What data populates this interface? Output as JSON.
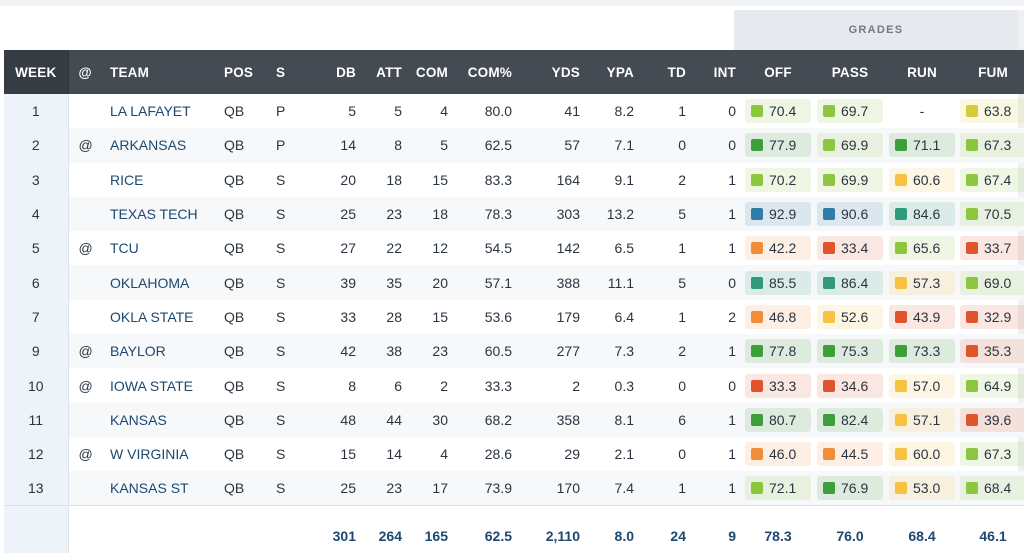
{
  "grades_label": "GRADES",
  "columns": {
    "week": "WEEK",
    "at": "@",
    "team": "TEAM",
    "pos": "POS",
    "s": "S",
    "db": "DB",
    "att": "ATT",
    "com": "COM",
    "comp": "COM%",
    "yds": "YDS",
    "ypa": "YPA",
    "td": "TD",
    "int": "INT",
    "off": "OFF",
    "pass": "PASS",
    "run": "RUN",
    "fum": "FUM"
  },
  "grade_colors": {
    "elite": "#2f7cab",
    "high": "#2f9a7a",
    "good": "#3d9e3a",
    "above": "#8cc63f",
    "average": "#d7cb3a",
    "below": "#f5c242",
    "low": "#f08c3a",
    "poor": "#e0542d"
  },
  "rows": [
    {
      "week": "1",
      "at": "",
      "team": "LA LAFAYET",
      "pos": "QB",
      "s": "P",
      "db": "5",
      "att": "5",
      "com": "4",
      "comp": "80.0",
      "yds": "41",
      "ypa": "8.2",
      "td": "1",
      "int": "0",
      "grades": [
        {
          "v": "70.4",
          "c": "above"
        },
        {
          "v": "69.7",
          "c": "above"
        },
        {
          "v": "-",
          "c": ""
        },
        {
          "v": "63.8",
          "c": "average"
        }
      ]
    },
    {
      "week": "2",
      "at": "@",
      "team": "ARKANSAS",
      "pos": "QB",
      "s": "P",
      "db": "14",
      "att": "8",
      "com": "5",
      "comp": "62.5",
      "yds": "57",
      "ypa": "7.1",
      "td": "0",
      "int": "0",
      "grades": [
        {
          "v": "77.9",
          "c": "good"
        },
        {
          "v": "69.9",
          "c": "above"
        },
        {
          "v": "71.1",
          "c": "good"
        },
        {
          "v": "67.3",
          "c": "above"
        }
      ]
    },
    {
      "week": "3",
      "at": "",
      "team": "RICE",
      "pos": "QB",
      "s": "S",
      "db": "20",
      "att": "18",
      "com": "15",
      "comp": "83.3",
      "yds": "164",
      "ypa": "9.1",
      "td": "2",
      "int": "1",
      "grades": [
        {
          "v": "70.2",
          "c": "above"
        },
        {
          "v": "69.9",
          "c": "above"
        },
        {
          "v": "60.6",
          "c": "below"
        },
        {
          "v": "67.4",
          "c": "above"
        }
      ]
    },
    {
      "week": "4",
      "at": "",
      "team": "TEXAS TECH",
      "pos": "QB",
      "s": "S",
      "db": "25",
      "att": "23",
      "com": "18",
      "comp": "78.3",
      "yds": "303",
      "ypa": "13.2",
      "td": "5",
      "int": "1",
      "grades": [
        {
          "v": "92.9",
          "c": "elite"
        },
        {
          "v": "90.6",
          "c": "elite"
        },
        {
          "v": "84.6",
          "c": "high"
        },
        {
          "v": "70.5",
          "c": "above"
        }
      ]
    },
    {
      "week": "5",
      "at": "@",
      "team": "TCU",
      "pos": "QB",
      "s": "S",
      "db": "27",
      "att": "22",
      "com": "12",
      "comp": "54.5",
      "yds": "142",
      "ypa": "6.5",
      "td": "1",
      "int": "1",
      "grades": [
        {
          "v": "42.2",
          "c": "low"
        },
        {
          "v": "33.4",
          "c": "poor"
        },
        {
          "v": "65.6",
          "c": "above"
        },
        {
          "v": "33.7",
          "c": "poor"
        }
      ]
    },
    {
      "week": "6",
      "at": "",
      "team": "OKLAHOMA",
      "pos": "QB",
      "s": "S",
      "db": "39",
      "att": "35",
      "com": "20",
      "comp": "57.1",
      "yds": "388",
      "ypa": "11.1",
      "td": "5",
      "int": "0",
      "grades": [
        {
          "v": "85.5",
          "c": "high"
        },
        {
          "v": "86.4",
          "c": "high"
        },
        {
          "v": "57.3",
          "c": "below"
        },
        {
          "v": "69.0",
          "c": "above"
        }
      ]
    },
    {
      "week": "7",
      "at": "",
      "team": "OKLA STATE",
      "pos": "QB",
      "s": "S",
      "db": "33",
      "att": "28",
      "com": "15",
      "comp": "53.6",
      "yds": "179",
      "ypa": "6.4",
      "td": "1",
      "int": "2",
      "grades": [
        {
          "v": "46.8",
          "c": "low"
        },
        {
          "v": "52.6",
          "c": "below"
        },
        {
          "v": "43.9",
          "c": "poor"
        },
        {
          "v": "32.9",
          "c": "poor"
        }
      ]
    },
    {
      "week": "9",
      "at": "@",
      "team": "BAYLOR",
      "pos": "QB",
      "s": "S",
      "db": "42",
      "att": "38",
      "com": "23",
      "comp": "60.5",
      "yds": "277",
      "ypa": "7.3",
      "td": "2",
      "int": "1",
      "grades": [
        {
          "v": "77.8",
          "c": "good"
        },
        {
          "v": "75.3",
          "c": "good"
        },
        {
          "v": "73.3",
          "c": "good"
        },
        {
          "v": "35.3",
          "c": "poor"
        }
      ]
    },
    {
      "week": "10",
      "at": "@",
      "team": "IOWA STATE",
      "pos": "QB",
      "s": "S",
      "db": "8",
      "att": "6",
      "com": "2",
      "comp": "33.3",
      "yds": "2",
      "ypa": "0.3",
      "td": "0",
      "int": "0",
      "grades": [
        {
          "v": "33.3",
          "c": "poor"
        },
        {
          "v": "34.6",
          "c": "poor"
        },
        {
          "v": "57.0",
          "c": "below"
        },
        {
          "v": "64.9",
          "c": "above"
        }
      ]
    },
    {
      "week": "11",
      "at": "",
      "team": "KANSAS",
      "pos": "QB",
      "s": "S",
      "db": "48",
      "att": "44",
      "com": "30",
      "comp": "68.2",
      "yds": "358",
      "ypa": "8.1",
      "td": "6",
      "int": "1",
      "grades": [
        {
          "v": "80.7",
          "c": "good"
        },
        {
          "v": "82.4",
          "c": "good"
        },
        {
          "v": "57.1",
          "c": "below"
        },
        {
          "v": "39.6",
          "c": "poor"
        }
      ]
    },
    {
      "week": "12",
      "at": "@",
      "team": "W VIRGINIA",
      "pos": "QB",
      "s": "S",
      "db": "15",
      "att": "14",
      "com": "4",
      "comp": "28.6",
      "yds": "29",
      "ypa": "2.1",
      "td": "0",
      "int": "1",
      "grades": [
        {
          "v": "46.0",
          "c": "low"
        },
        {
          "v": "44.5",
          "c": "low"
        },
        {
          "v": "60.0",
          "c": "below"
        },
        {
          "v": "67.3",
          "c": "above"
        }
      ]
    },
    {
      "week": "13",
      "at": "",
      "team": "KANSAS ST",
      "pos": "QB",
      "s": "S",
      "db": "25",
      "att": "23",
      "com": "17",
      "comp": "73.9",
      "yds": "170",
      "ypa": "7.4",
      "td": "1",
      "int": "1",
      "grades": [
        {
          "v": "72.1",
          "c": "above"
        },
        {
          "v": "76.9",
          "c": "good"
        },
        {
          "v": "53.0",
          "c": "below"
        },
        {
          "v": "68.4",
          "c": "above"
        }
      ]
    }
  ],
  "totals": {
    "db": "301",
    "att": "264",
    "com": "165",
    "comp": "62.5",
    "yds": "2,110",
    "ypa": "8.0",
    "td": "24",
    "int": "9",
    "off": "78.3",
    "pass": "76.0",
    "run": "68.4",
    "fum": "46.1"
  }
}
